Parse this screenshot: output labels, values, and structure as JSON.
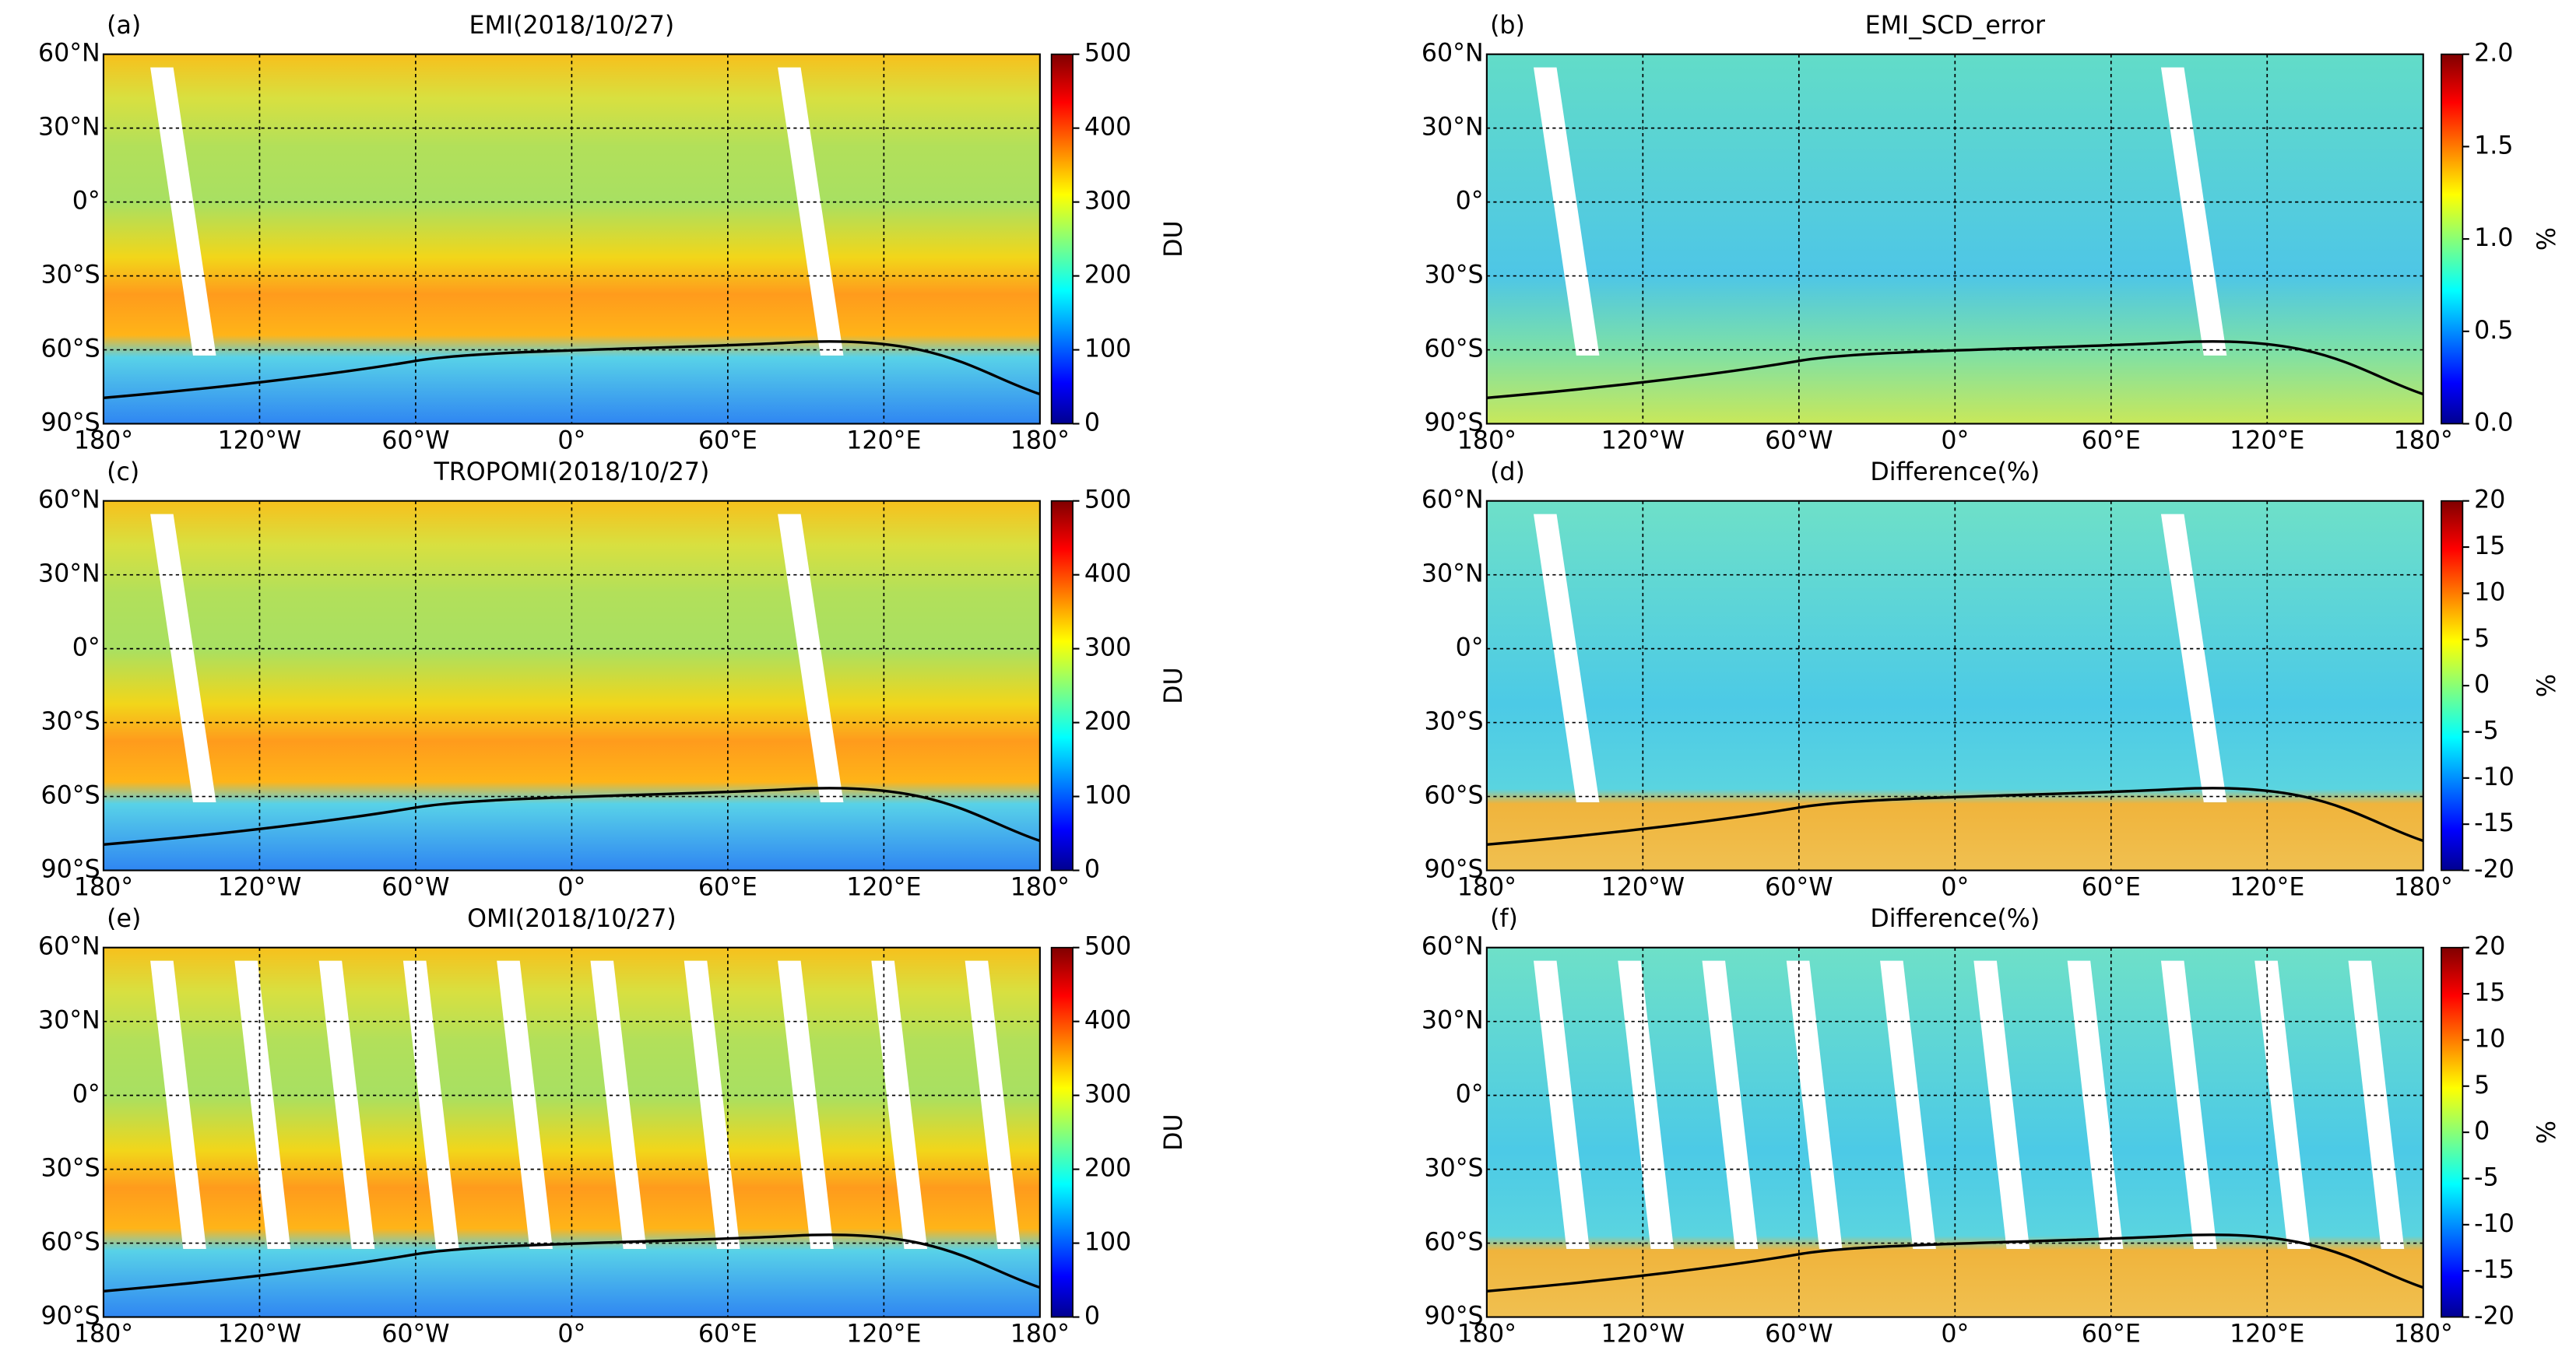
{
  "map_axes": {
    "xlim": [
      -180,
      180
    ],
    "xticks": [
      {
        "value": -180,
        "label": "180°"
      },
      {
        "value": -120,
        "label": "120°W"
      },
      {
        "value": -60,
        "label": "60°W"
      },
      {
        "value": 0,
        "label": "0°"
      },
      {
        "value": 60,
        "label": "60°E"
      },
      {
        "value": 120,
        "label": "120°E"
      },
      {
        "value": 180,
        "label": "180°"
      }
    ],
    "ylim": [
      -90,
      60
    ],
    "yticks": [
      {
        "value": -90,
        "label": "90°S"
      },
      {
        "value": -60,
        "label": "60°S"
      },
      {
        "value": -30,
        "label": "30°S"
      },
      {
        "value": 0,
        "label": "0°"
      },
      {
        "value": 30,
        "label": "30°N"
      },
      {
        "value": 60,
        "label": "60°N"
      }
    ],
    "grid": true
  },
  "colormap": "jet",
  "panels": [
    {
      "label": "(a)",
      "title": "EMI(2018/10/27)",
      "colorbar": {
        "label": "DU",
        "lim": [
          0,
          500
        ],
        "ticks": [
          0,
          100,
          200,
          300,
          400,
          500
        ]
      }
    },
    {
      "label": "(b)",
      "title": "EMI_SCD_error",
      "colorbar": {
        "label": "%",
        "lim": [
          0,
          2
        ],
        "ticks": [
          {
            "value": 0,
            "label": "0.0"
          },
          0.5,
          {
            "value": 1,
            "label": "1.0"
          },
          1.5,
          {
            "value": 2,
            "label": "2.0"
          }
        ]
      }
    },
    {
      "label": "(c)",
      "title": "TROPOMI(2018/10/27)",
      "colorbar": {
        "label": "DU",
        "lim": [
          0,
          500
        ],
        "ticks": [
          0,
          100,
          200,
          300,
          400,
          500
        ]
      }
    },
    {
      "label": "(d)",
      "title": "Difference(%)",
      "colorbar": {
        "label": "%",
        "lim": [
          -20,
          20
        ],
        "ticks": [
          -20,
          -15,
          -10,
          -5,
          0,
          5,
          10,
          15,
          20
        ]
      }
    },
    {
      "label": "(e)",
      "title": "OMI(2018/10/27)",
      "colorbar": {
        "label": "DU",
        "lim": [
          0,
          500
        ],
        "ticks": [
          0,
          100,
          200,
          300,
          400,
          500
        ]
      }
    },
    {
      "label": "(f)",
      "title": "Difference(%)",
      "colorbar": {
        "label": "%",
        "lim": [
          -20,
          20
        ],
        "ticks": [
          -20,
          -15,
          -10,
          -5,
          0,
          5,
          10,
          15,
          20
        ]
      }
    }
  ]
}
